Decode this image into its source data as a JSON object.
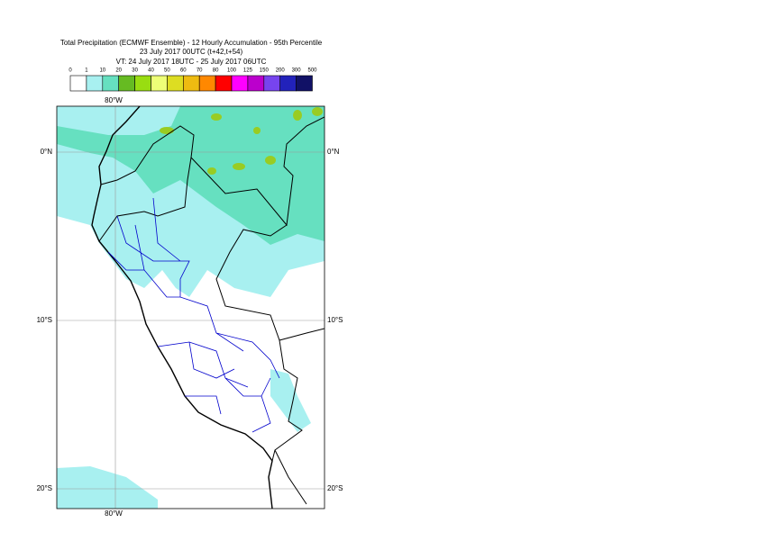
{
  "header": {
    "title": "Total Precipitation (ECMWF Ensemble) - 12 Hourly Accumulation - 95th Percentile",
    "run": "23 July 2017 00UTC (t+42,t+54)",
    "valid": "VT: 24 July 2017 18UTC - 25 July 2017 06UTC"
  },
  "legend": {
    "thresholds": [
      0,
      1,
      10,
      20,
      30,
      40,
      50,
      60,
      70,
      80,
      100,
      125,
      150,
      200,
      300,
      500
    ],
    "colors": [
      "#ffffff",
      "#a8f0f0",
      "#66e0c0",
      "#66bb22",
      "#99dd11",
      "#eeff77",
      "#dddd22",
      "#eebb11",
      "#ff8800",
      "#ff0000",
      "#ff00ff",
      "#bb00cc",
      "#7744ee",
      "#2222bb",
      "#111166"
    ]
  },
  "map": {
    "lon_label_top": "80°W",
    "lon_label_bottom": "80°W",
    "lat_labels": [
      "0°N",
      "10°S",
      "20°S"
    ]
  }
}
